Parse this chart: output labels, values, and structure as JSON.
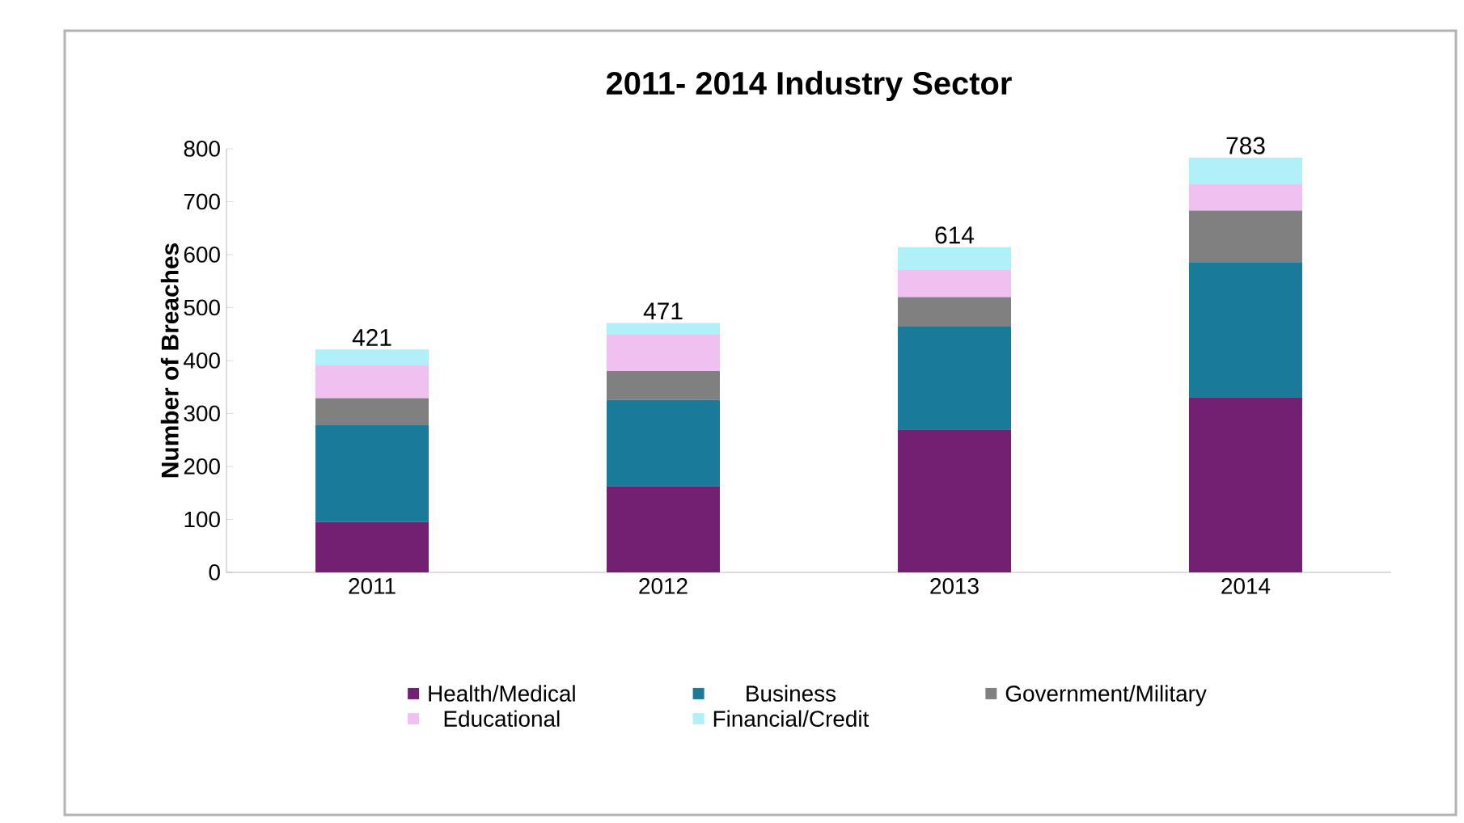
{
  "chart_data": {
    "type": "bar",
    "stacked": true,
    "title": "2011- 2014 Industry Sector",
    "ylabel": "Number of Breaches",
    "categories": [
      "2011",
      "2012",
      "2013",
      "2014"
    ],
    "series": [
      {
        "name": "Health/Medical",
        "color": "#732073",
        "values": [
          95,
          163,
          270,
          331
        ]
      },
      {
        "name": "Business",
        "color": "#1a7a9a",
        "values": [
          183,
          163,
          194,
          255
        ]
      },
      {
        "name": "Government/Military",
        "color": "#808080",
        "values": [
          51,
          54,
          56,
          97
        ]
      },
      {
        "name": "Educational",
        "color": "#f0c0f0",
        "values": [
          63,
          69,
          51,
          51
        ]
      },
      {
        "name": "Financial/Credit",
        "color": "#b0f0f8",
        "values": [
          29,
          22,
          43,
          49
        ]
      }
    ],
    "totals": [
      "421",
      "471",
      "614",
      "783"
    ],
    "ylim": [
      0,
      800
    ],
    "yticks": [
      0,
      100,
      200,
      300,
      400,
      500,
      600,
      700,
      800
    ],
    "grid": false,
    "legend": "bottom"
  }
}
